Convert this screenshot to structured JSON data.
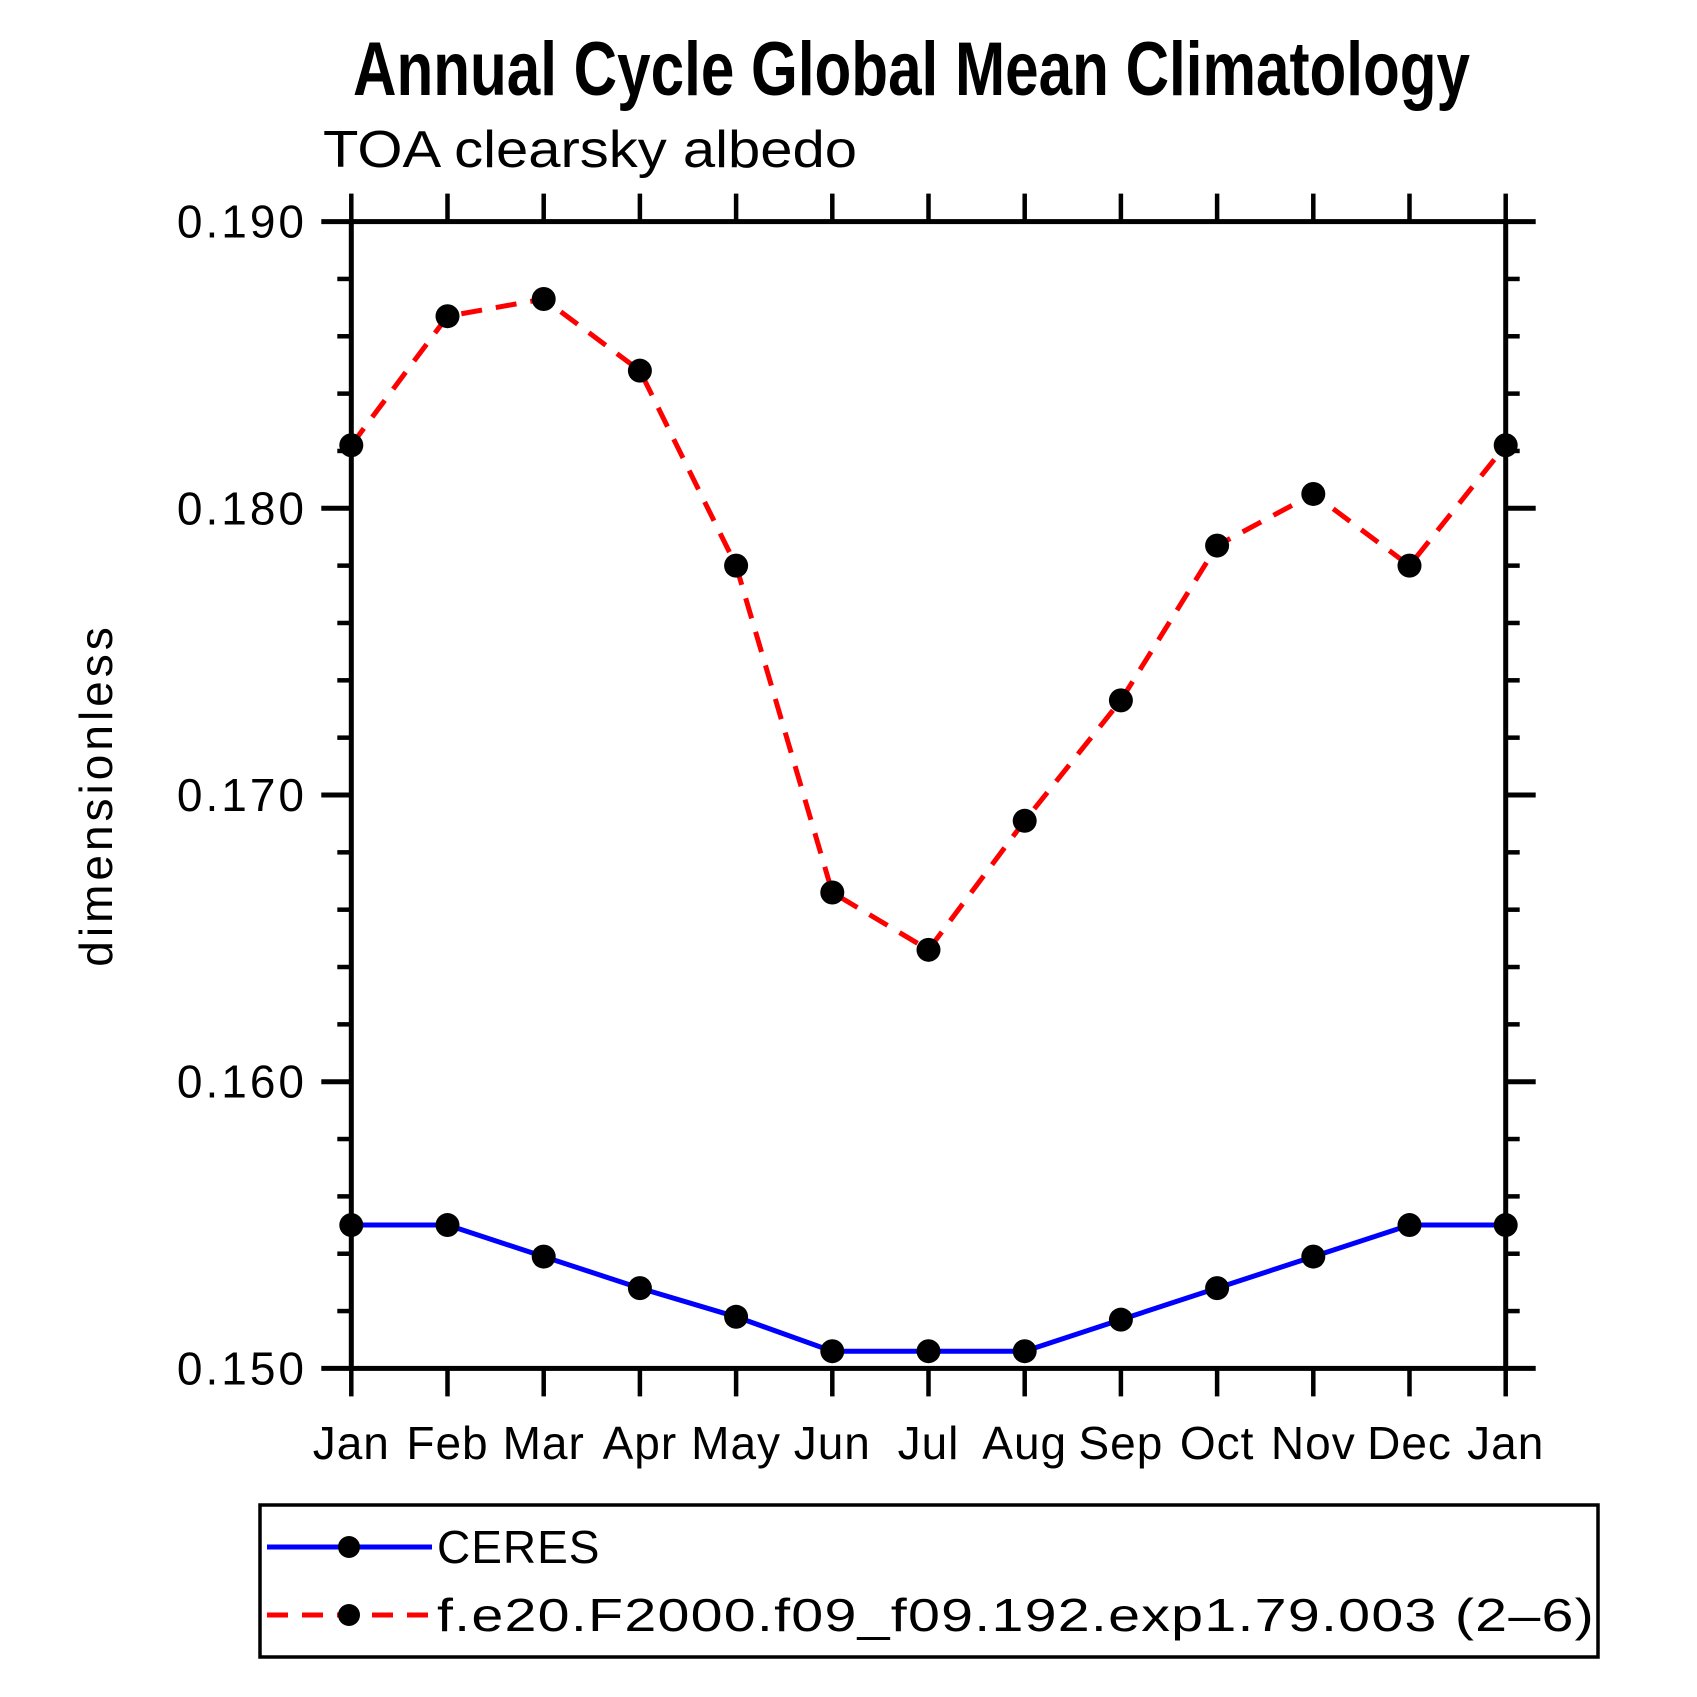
{
  "chart_data": {
    "type": "line",
    "title": "Annual Cycle Global Mean Climatology",
    "subtitle": "TOA clearsky albedo",
    "ylabel": "dimensionless",
    "xlabel": "",
    "categories": [
      "Jan",
      "Feb",
      "Mar",
      "Apr",
      "May",
      "Jun",
      "Jul",
      "Aug",
      "Sep",
      "Oct",
      "Nov",
      "Dec",
      "Jan"
    ],
    "series": [
      {
        "name": "CERES",
        "color": "#0000ff",
        "line_style": "solid",
        "marker": "filled-circle",
        "marker_color": "#000000",
        "values": [
          0.155,
          0.155,
          0.1539,
          0.1528,
          0.1518,
          0.1506,
          0.1506,
          0.1506,
          0.1517,
          0.1528,
          0.1539,
          0.155,
          0.155
        ]
      },
      {
        "name": "f.e20.F2000.f09_f09.192.exp1.79.003 (2–6)",
        "color": "#ff0000",
        "line_style": "dashed",
        "marker": "filled-circle",
        "marker_color": "#000000",
        "values": [
          0.1822,
          0.1867,
          0.1873,
          0.1848,
          0.178,
          0.1666,
          0.1646,
          0.1691,
          0.1733,
          0.1787,
          0.1805,
          0.178,
          0.1822
        ]
      }
    ],
    "ylim": [
      0.15,
      0.19
    ],
    "y_major_step": 0.01,
    "y_minor_step": 0.002,
    "y_tick_labels": [
      "0.150",
      "0.160",
      "0.170",
      "0.180",
      "0.190"
    ],
    "grid": "off",
    "legend_position": "bottom-left-box",
    "axis_color": "#000000"
  }
}
